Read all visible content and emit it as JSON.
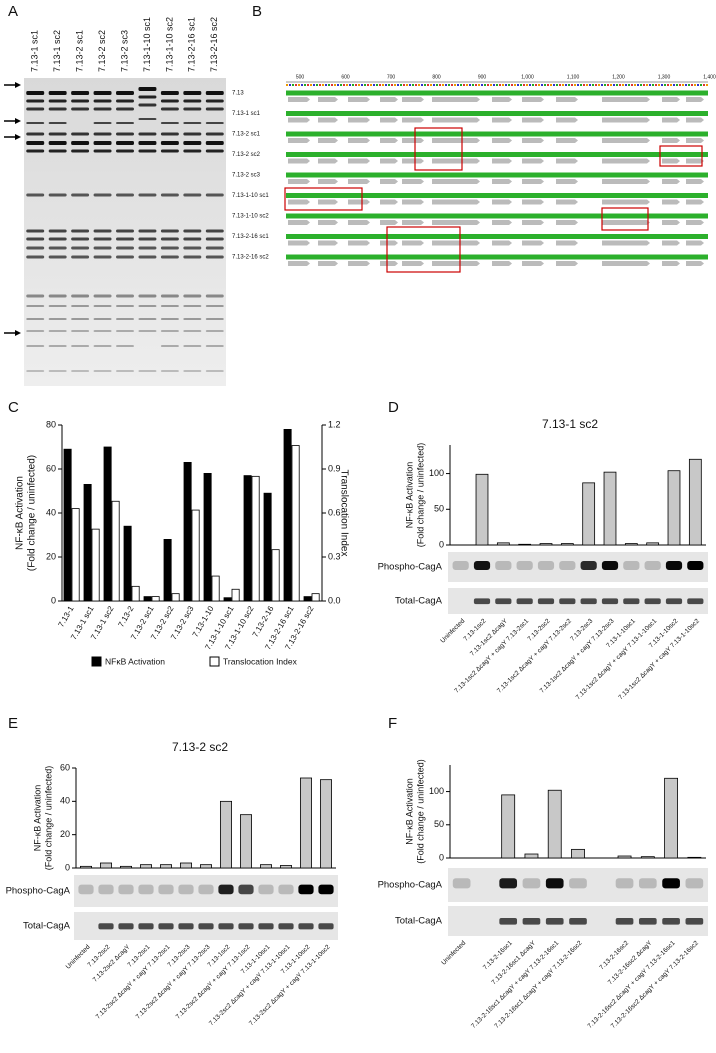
{
  "figure": {
    "panel_labels": [
      "A",
      "B",
      "C",
      "D",
      "E",
      "F"
    ],
    "gel": {
      "lanes": [
        "7.13-1 sc1",
        "7.13-1 sc2",
        "7.13-2 sc1",
        "7.13-2 sc2",
        "7.13-2 sc3",
        "7.13-1-10 sc1",
        "7.13-1-10 sc2",
        "7.13-2-16 sc1",
        "7.13-2-16 sc2"
      ]
    },
    "alignment": {
      "ruler": [
        "500",
        "600",
        "700",
        "800",
        "900",
        "1,000",
        "1,100",
        "1,200",
        "1,300",
        "1,400"
      ],
      "rows": [
        "7.13",
        "7.13-1 sc1",
        "7.13-2 sc1",
        "7.13-2 sc2",
        "7.13-2 sc3",
        "7.13-1-10 sc1",
        "7.13-1-10 sc2",
        "7.13-2-16 sc1",
        "7.13-2-16 sc2"
      ]
    }
  },
  "chart_data": [
    {
      "type": "grouped-bar",
      "categories": [
        "7.13-1",
        "7.13-1 sc1",
        "7.13-1 sc2",
        "7.13-2",
        "7.13-2 sc1",
        "7.13-2 sc2",
        "7.13-2 sc3",
        "7.13-1-10",
        "7.13-1-10 sc1",
        "7.13-1-10 sc2",
        "7.13-2-16",
        "7.13-2-16 sc1",
        "7.13-2-16 sc2"
      ],
      "series": [
        {
          "name": "NFκB Activation",
          "color": "#000000",
          "values": [
            69,
            53,
            70,
            34,
            2,
            28,
            63,
            58,
            1.5,
            57,
            49,
            78,
            2
          ]
        },
        {
          "name": "Translocation Index",
          "color": "#ffffff",
          "axis": "y2",
          "values": [
            0.63,
            0.49,
            0.68,
            0.1,
            0.03,
            0.05,
            0.62,
            0.17,
            0.08,
            0.85,
            0.35,
            1.06,
            0.05
          ]
        }
      ],
      "ylabel": [
        "NF-κB Activation",
        "(Fold change / uninfected)"
      ],
      "y2label": "Translocation Index",
      "ylim": [
        0,
        80
      ],
      "yticks": [
        0,
        20,
        40,
        60,
        80
      ],
      "y2lim": [
        0,
        1.2
      ],
      "y2ticks": [
        {
          "value": 0,
          "label": "0.0"
        },
        0.3,
        0.6,
        0.9,
        1.2
      ],
      "legend": "bottom"
    },
    {
      "type": "bar",
      "title": "7.13-1 sc2",
      "categories": [
        "Uninfected",
        "7.13-1sc2",
        "7.13-1sc2 ΔcagY",
        "7.13-1sc2 ΔcagY + cagY 7.13-2sc1",
        "7.13-2sc2",
        "7.13-1sc2 ΔcagY + cagY 7.13-2sc2",
        "7.13-2sc3",
        "7.13-1sc2 ΔcagY + cagY 7.13-2sc3",
        "7.13-1-10sc1",
        "7.13-1sc2 ΔcagY + cagY 7.13-1-10sc1",
        "7.13-1-10sc2",
        "7.13-1sc2 ΔcagY + cagY 7.13-1-10sc2"
      ],
      "values": [
        0,
        99,
        3,
        1,
        2,
        2,
        87,
        102,
        2,
        3,
        104,
        120
      ],
      "color": "#c8c8c8",
      "ylabel": [
        "NF-κB Activation",
        "(Fold change / uninfected)"
      ],
      "ylim": [
        0,
        140
      ],
      "yticks": [
        0,
        50,
        100
      ],
      "blots": [
        "Phospho-CagA",
        "Total-CagA"
      ]
    },
    {
      "type": "bar",
      "title": "7.13-2 sc2",
      "categories": [
        "Uninfected",
        "7.13-2sc2",
        "7.13-2sc2 ΔcagY",
        "7.13-2sc1",
        "7.13-2sc2 ΔcagY + cagY 7.13-2sc1",
        "7.13-2sc3",
        "7.13-2sc2 ΔcagY + cagY 7.13-2sc3",
        "7.13-1sc2",
        "7.13-2sc2 ΔcagY + cagY 7.13-1sc2",
        "7.13-1-10sc1",
        "7.13-2sc2 ΔcagY + cagY 7.13-1-10sc1",
        "7.13-1-10sc2",
        "7.13-2sc2 ΔcagY + cagY 7.13-1-10sc2"
      ],
      "values": [
        1,
        3,
        1,
        2,
        2,
        3,
        2,
        40,
        32,
        2,
        1.5,
        54,
        53
      ],
      "color": "#c8c8c8",
      "ylabel": [
        "NF-κB Activation",
        "(Fold change / uninfected)"
      ],
      "ylim": [
        0,
        60
      ],
      "yticks": [
        0,
        20,
        40,
        60
      ],
      "blots": [
        "Phospho-CagA",
        "Total-CagA"
      ]
    },
    {
      "type": "bar",
      "categories": [
        "Uninfected",
        null,
        "7.13-2-16sc1",
        "7.13-2-16sc1 ΔcagY",
        "7.13-2-16sc1 ΔcagY + cagY 7.13-2-16sc1",
        "7.13-2-16sc1 ΔcagY + cagY 7.13-2-16sc2",
        null,
        "7.13-2-16sc2",
        "7.13-2-16sc2 ΔcagY",
        "7.13-2-16sc2 ΔcagY + cagY 7.13-2-16sc1",
        "7.13-2-16sc2 ΔcagY + cagY 7.13-2-16sc2"
      ],
      "values": [
        0,
        null,
        95,
        6,
        102,
        13,
        null,
        3,
        2,
        120,
        1
      ],
      "color": "#c8c8c8",
      "ylabel": [
        "NF-κB Activation",
        "(Fold change / uninfected)"
      ],
      "ylim": [
        0,
        140
      ],
      "yticks": [
        0,
        50,
        100
      ],
      "blots": [
        "Phospho-CagA",
        "Total-CagA"
      ]
    }
  ]
}
